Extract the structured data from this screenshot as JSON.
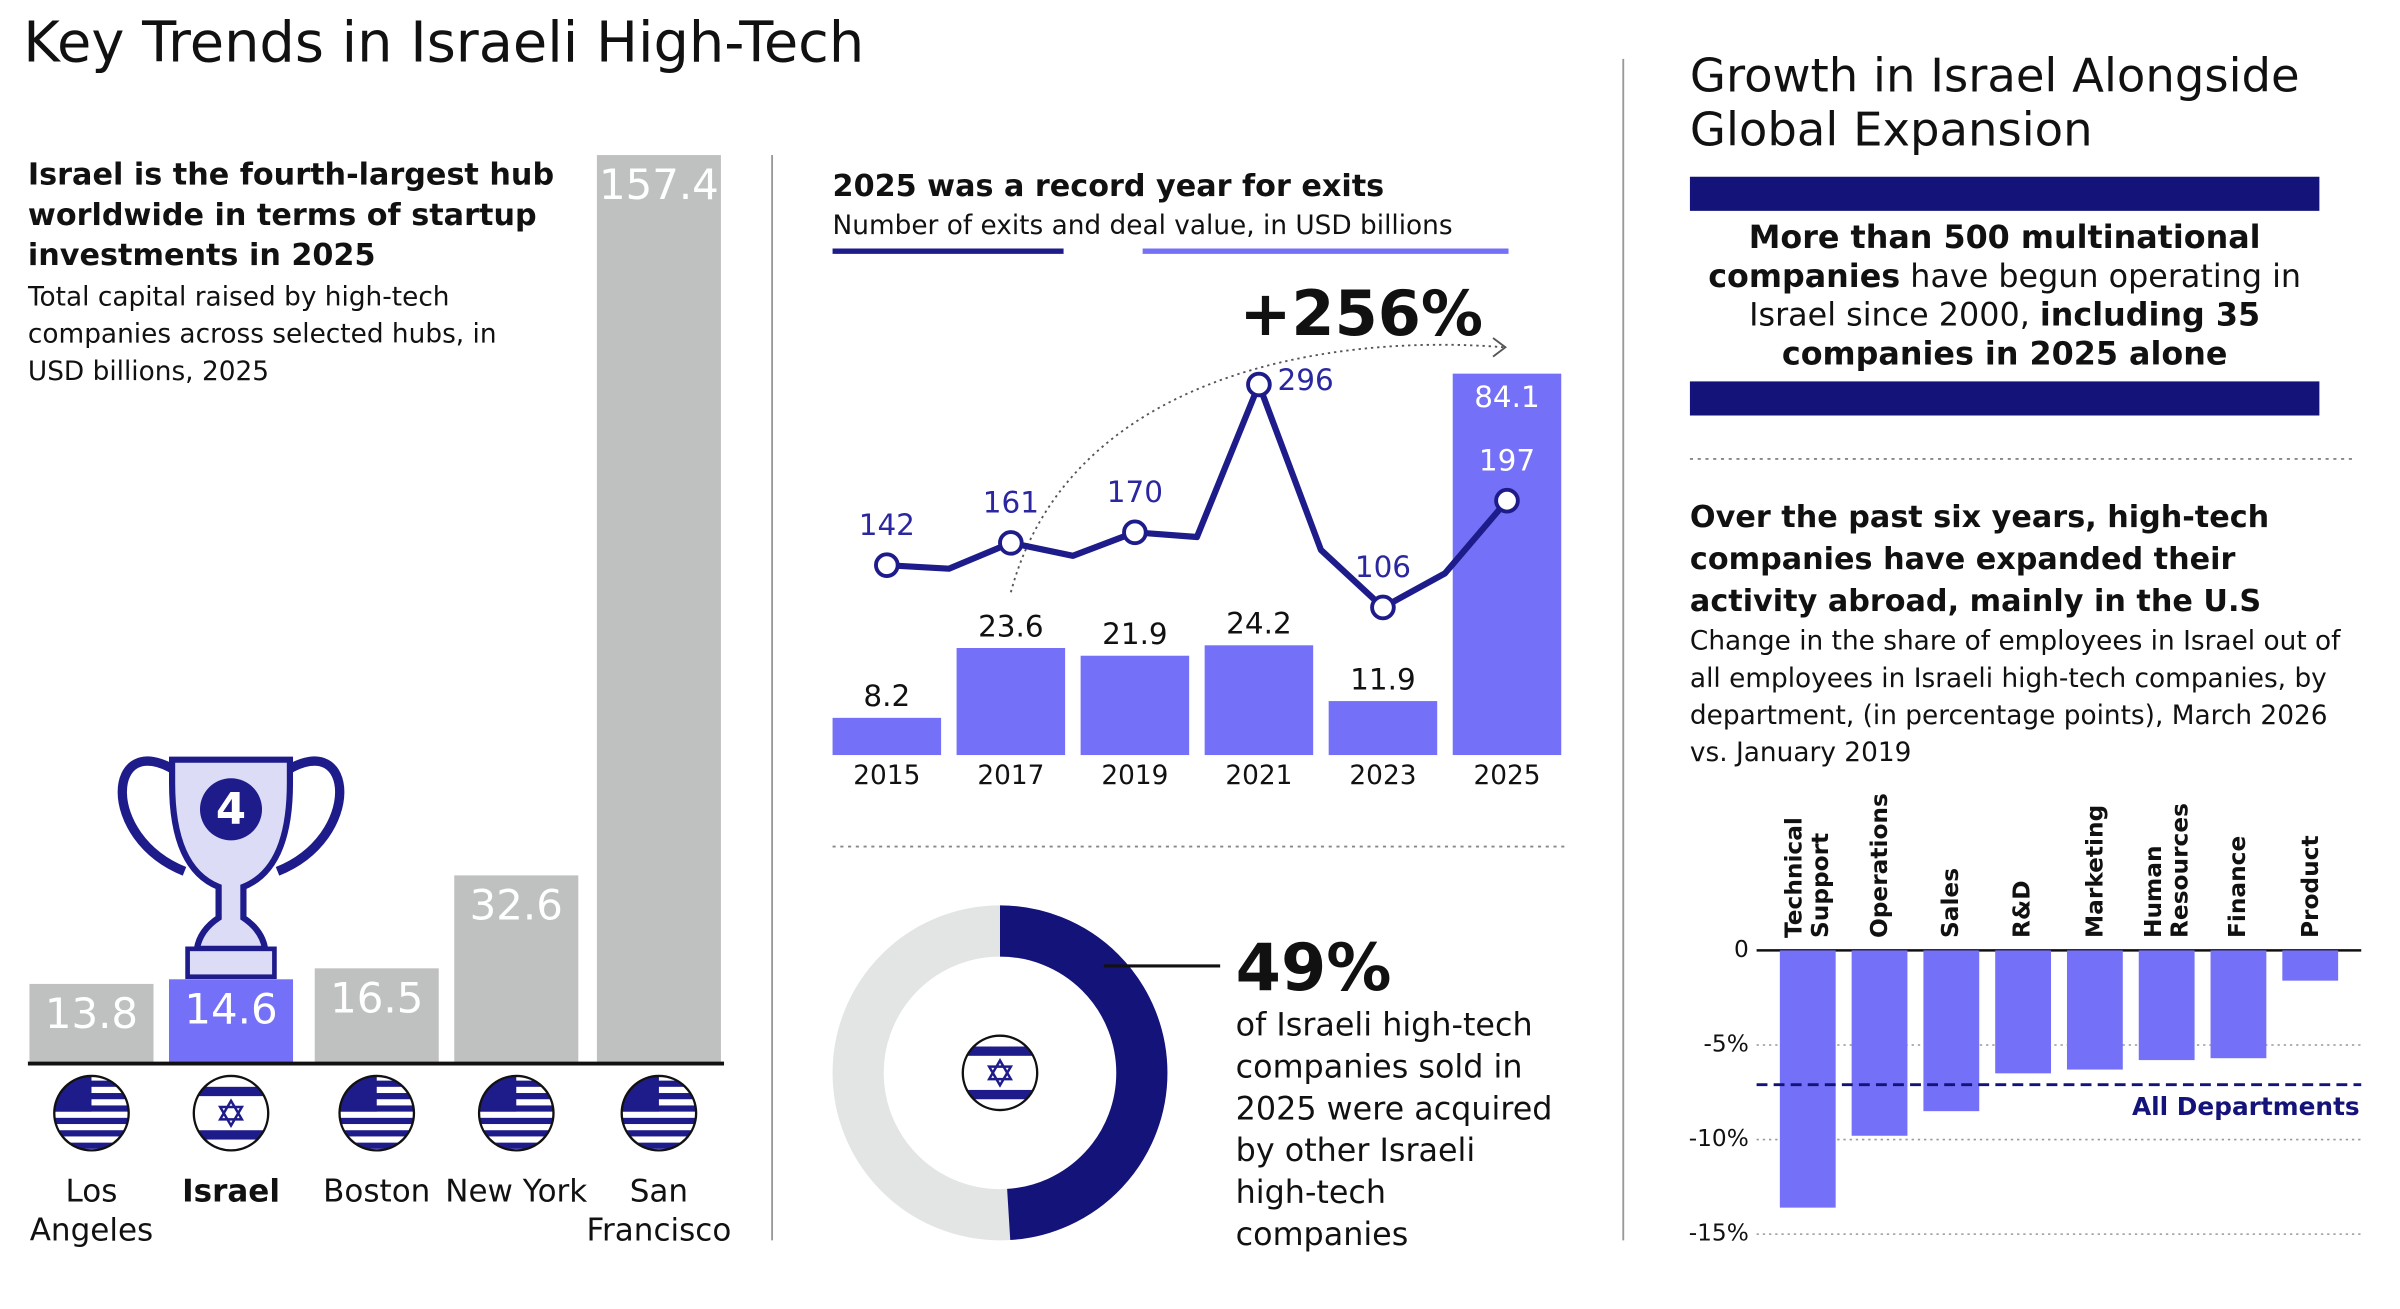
{
  "title": "Key Trends in Israeli High-Tech",
  "chart_data": [
    {
      "type": "bar",
      "title": "Israel is the fourth-largest hub worldwide in terms of startup investments in 2025",
      "subtitle": "Total capital raised by high-tech companies across selected hubs, in USD billions, 2025",
      "categories": [
        "Los Angeles",
        "Israel",
        "Boston",
        "New York",
        "San Francisco"
      ],
      "values": [
        13.8,
        14.6,
        16.5,
        32.6,
        157.4
      ],
      "colors": [
        "#bfc1c1",
        "#7470f7",
        "#bfc1c1",
        "#bfc1c1",
        "#bfc1c1"
      ],
      "rank": 4
    },
    {
      "type": "bar-line",
      "title": "2025 was a record year for exits",
      "subtitle": "Number of exits and deal value, in USD billions",
      "categories": [
        "2015",
        null,
        "2017",
        null,
        "2019",
        null,
        "2021",
        null,
        "2023",
        null,
        "2025"
      ],
      "bars": {
        "color": "#7470f7",
        "values": [
          8.2,
          null,
          23.6,
          null,
          21.9,
          null,
          24.2,
          null,
          11.9,
          null,
          84.1
        ]
      },
      "line": {
        "color": "#1e1b8a",
        "values": [
          142,
          139,
          161,
          150,
          170,
          166,
          296,
          155,
          106,
          135,
          197
        ]
      },
      "annotation": "+256%"
    },
    {
      "type": "donut",
      "values": [
        49
      ],
      "value_labels": [
        "49%"
      ],
      "caption": "of Israeli high-tech companies sold in 2025 were acquired by other Israeli high-tech companies",
      "color": "#14137a",
      "rest_color": "#e3e4e4"
    },
    {
      "type": "bar",
      "title": "Over the past six years, high-tech companies have expanded their activity abroad, mainly in the U.S",
      "subtitle": "Change in the share of employees in Israel out of all employees in Israeli high-tech companies, by department, (in percentage points), March 2026 vs. January 2019",
      "categories": [
        "Technical Support",
        "Operations",
        "Sales",
        "R&D",
        "Marketing",
        "Human Resources",
        "Finance",
        "Product"
      ],
      "values": [
        -13.6,
        -9.8,
        -8.5,
        -6.5,
        -6.3,
        -5.8,
        -5.7,
        -1.6
      ],
      "color": "#7470f7",
      "ylim": [
        -15,
        0
      ],
      "yticks": [
        0,
        {
          "value": -5,
          "label": "-5%"
        },
        {
          "value": -10,
          "label": "-10%"
        },
        {
          "value": -15,
          "label": "-15%"
        }
      ],
      "grid": true,
      "reference": {
        "value": -7.1,
        "label": "All Departments",
        "color": "#14137a"
      }
    }
  ],
  "panel": {
    "title": "Growth in Israel Alongside Global Expansion",
    "text": [
      {
        "text": "More than 500 multinational companies",
        "bold": true
      },
      {
        "text": " have begun operating in Israel since 2000, ",
        "bold": false
      },
      {
        "text": "including 35 companies in 2025 alone",
        "bold": true
      }
    ]
  }
}
